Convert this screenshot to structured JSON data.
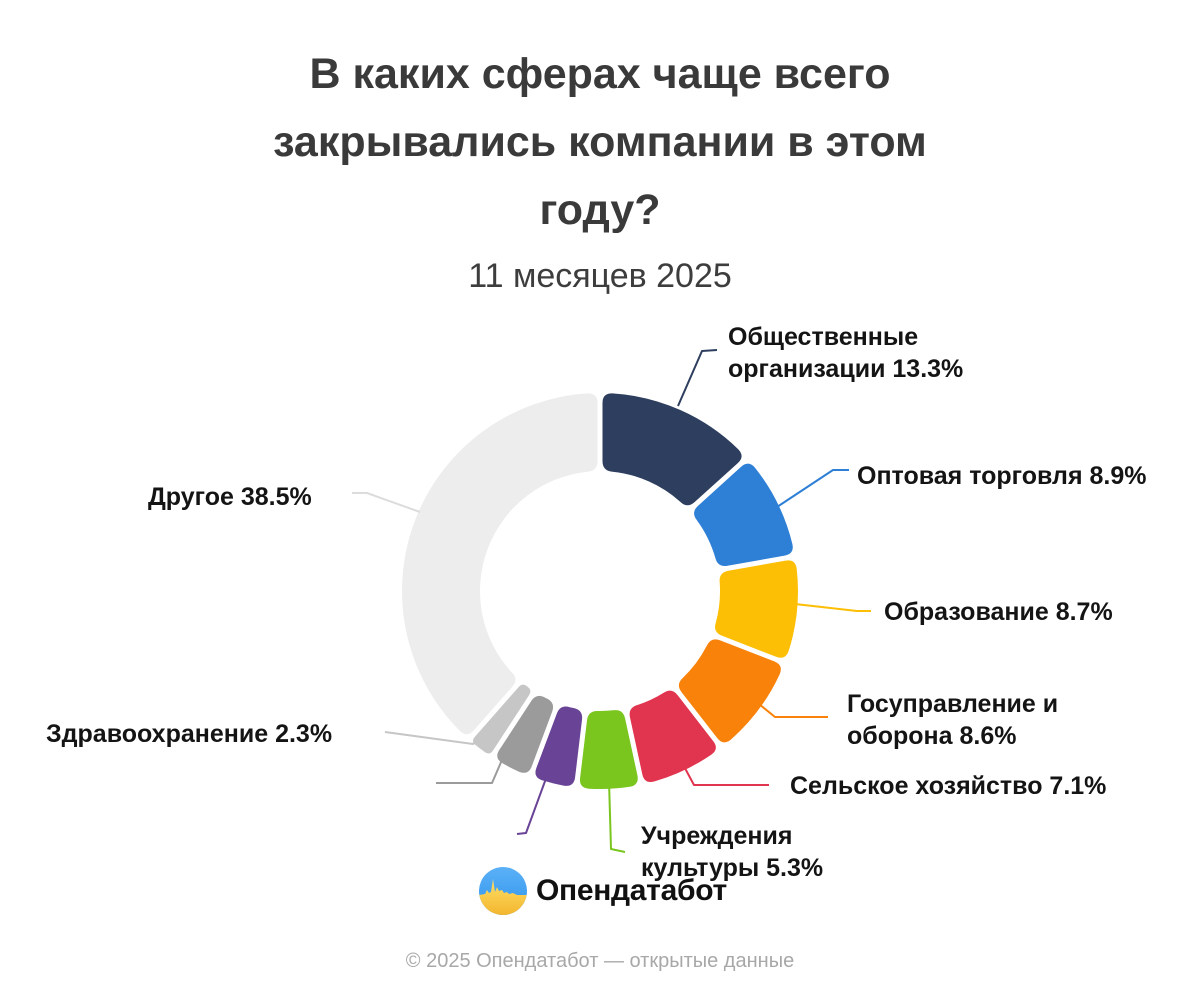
{
  "header": {
    "title": "В каких сферах чаще всего закрывались компании в этом году?",
    "subtitle": "11 месяцев 2025"
  },
  "chart_data": {
    "type": "pie",
    "subtype": "donut",
    "title": "В каких сферах чаще всего закрывались компании в этом году?",
    "subtitle": "11 месяцев 2025",
    "unit": "%",
    "direction": "clockwise",
    "start_angle_deg": 0,
    "slices": [
      {
        "name": "Общественные организации",
        "value": 13.3,
        "color": "#2d3e5e",
        "labeled": true
      },
      {
        "name": "Оптовая торговля",
        "value": 8.9,
        "color": "#2e7fd6",
        "labeled": true
      },
      {
        "name": "Образование",
        "value": 8.7,
        "color": "#fcbf05",
        "labeled": true
      },
      {
        "name": "Госуправление и оборона",
        "value": 8.6,
        "color": "#f8820a",
        "labeled": true
      },
      {
        "name": "Сельское хозяйство",
        "value": 7.1,
        "color": "#e1344e",
        "labeled": true
      },
      {
        "name": "Учреждения культуры",
        "value": 5.3,
        "color": "#7ac51e",
        "labeled": true
      },
      {
        "name": "",
        "value": 3.8,
        "color": "#694396",
        "labeled": false
      },
      {
        "name": "",
        "value": 3.5,
        "color": "#9b9b9b",
        "labeled": false
      },
      {
        "name": "Здравоохранение",
        "value": 2.3,
        "color": "#c6c6c6",
        "labeled": true
      },
      {
        "name": "Другое",
        "value": 38.5,
        "color": "#ededed",
        "labeled": true
      }
    ]
  },
  "labels": {
    "obshchestvennye": {
      "line1": "Общественные",
      "line2": "организации 13.3%"
    },
    "optovaya": {
      "text": "Оптовая торговля 8.9%"
    },
    "obrazovanie": {
      "text": "Образование 8.7%"
    },
    "gosupravlenie": {
      "line1": "Госуправление и",
      "line2": "оборона 8.6%"
    },
    "selskoe": {
      "text": "Сельское хозяйство 7.1%"
    },
    "uchrezhdeniya": {
      "line1": "Учреждения",
      "line2": "культуры 5.3%"
    },
    "zdravoohranenie": {
      "text": "Здравоохранение 2.3%"
    },
    "drugoe": {
      "text": "Другое 38.5%"
    }
  },
  "logo": {
    "text": "Опендатабот"
  },
  "footer": {
    "text": "© 2025 Опендатабот — открытые данные"
  }
}
